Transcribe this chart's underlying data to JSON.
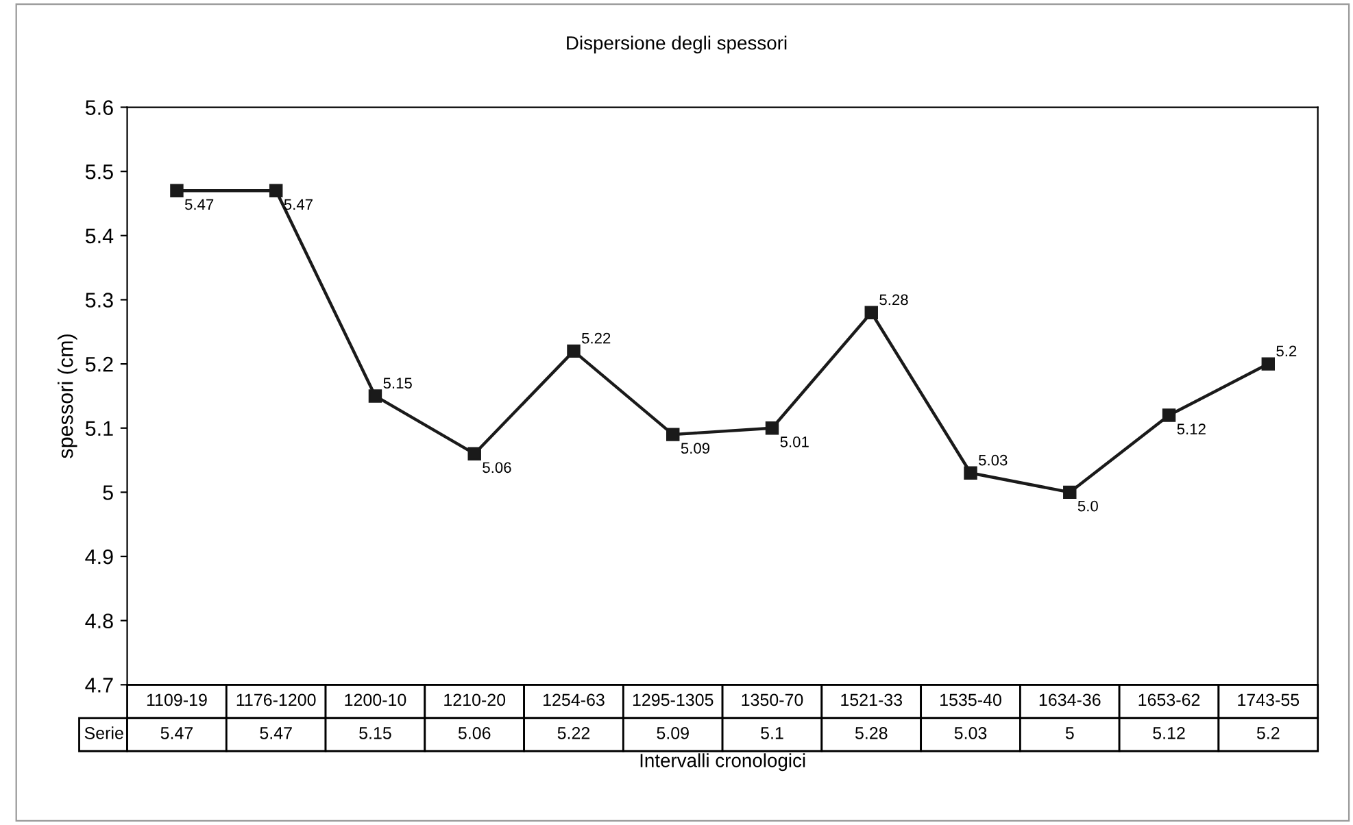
{
  "chart_data": {
    "type": "line",
    "title": "Dispersione degli spessori",
    "xlabel": "Intervalli cronologici",
    "ylabel": "spessori (cm)",
    "categories": [
      "1109-19",
      "1176-1200",
      "1200-10",
      "1210-20",
      "1254-63",
      "1295-1305",
      "1350-70",
      "1521-33",
      "1535-40",
      "1634-36",
      "1653-62",
      "1743-55"
    ],
    "series": [
      {
        "name": "Serie",
        "color": "#1a1a1a",
        "values": [
          5.47,
          5.47,
          5.15,
          5.06,
          5.22,
          5.09,
          5.1,
          5.28,
          5.03,
          5,
          5.12,
          5.2
        ],
        "value_labels": [
          "5.47",
          "5.47",
          "5.15",
          "5.06",
          "5.22",
          "5.09",
          "5.1",
          "5.28",
          "5.03",
          "5",
          "5.12",
          "5.2"
        ]
      }
    ],
    "annotations": [
      {
        "text": "5.47",
        "x": "1109-19",
        "y": 5.47
      },
      {
        "text": "5.47",
        "x": "1176-1200",
        "y": 5.47
      },
      {
        "text": "5.15",
        "x": "1200-10",
        "y": 5.15
      },
      {
        "text": "5.06",
        "x": "1210-20",
        "y": 5.06
      },
      {
        "text": "5.22",
        "x": "1254-63",
        "y": 5.22
      },
      {
        "text": "5.09",
        "x": "1295-1305",
        "y": 5.09
      },
      {
        "text": "5.01",
        "x": "1350-70",
        "y": 5.1
      },
      {
        "text": "5.28",
        "x": "1521-33",
        "y": 5.28
      },
      {
        "text": "5.03",
        "x": "1535-40",
        "y": 5.03
      },
      {
        "text": "5.0",
        "x": "1634-36",
        "y": 5
      },
      {
        "text": "5.12",
        "x": "1653-62",
        "y": 5.12
      },
      {
        "text": "5.2",
        "x": "1743-55",
        "y": 5.2
      }
    ],
    "ylim": [
      4.7,
      5.6
    ],
    "yticks": [
      4.7,
      4.8,
      4.9,
      5,
      5.1,
      5.2,
      5.3,
      5.4,
      5.5,
      5.6
    ],
    "marker": "square",
    "line_style": "solid",
    "grid": false,
    "legend": "bottom"
  }
}
